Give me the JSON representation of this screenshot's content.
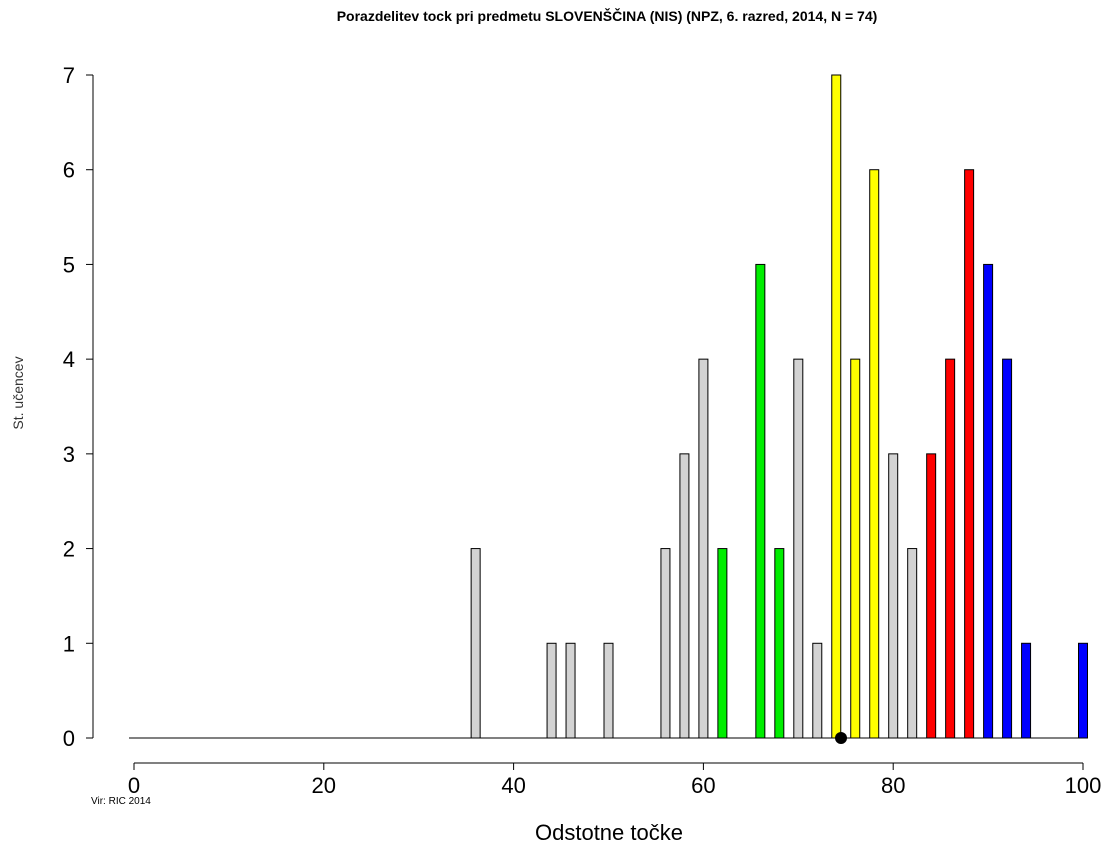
{
  "chart_data": {
    "type": "bar",
    "title": "Porazdelitev tock pri predmetu SLOVENŠČINA (NIS) (NPZ, 6. razred, 2014, N = 74)",
    "xlabel": "Odstotne točke",
    "ylabel": "St. učencev",
    "source": "Vir: RIC 2014",
    "xlim": [
      0,
      100
    ],
    "ylim": [
      0,
      7
    ],
    "xticks": [
      0,
      20,
      40,
      60,
      80,
      100
    ],
    "yticks": [
      0,
      1,
      2,
      3,
      4,
      5,
      6,
      7
    ],
    "mean_marker": 74.5,
    "colors": {
      "gray": "#d3d3d3",
      "green": "#00ee00",
      "yellow": "#ffff00",
      "red": "#ff0000",
      "blue": "#0000ff",
      "marker": "#000000"
    },
    "bars": [
      {
        "x": 36,
        "value": 2,
        "color": "gray"
      },
      {
        "x": 44,
        "value": 1,
        "color": "gray"
      },
      {
        "x": 46,
        "value": 1,
        "color": "gray"
      },
      {
        "x": 50,
        "value": 1,
        "color": "gray"
      },
      {
        "x": 56,
        "value": 2,
        "color": "gray"
      },
      {
        "x": 58,
        "value": 3,
        "color": "gray"
      },
      {
        "x": 60,
        "value": 4,
        "color": "gray"
      },
      {
        "x": 62,
        "value": 2,
        "color": "green"
      },
      {
        "x": 66,
        "value": 5,
        "color": "green"
      },
      {
        "x": 68,
        "value": 2,
        "color": "green"
      },
      {
        "x": 70,
        "value": 4,
        "color": "gray"
      },
      {
        "x": 72,
        "value": 1,
        "color": "gray"
      },
      {
        "x": 74,
        "value": 7,
        "color": "yellow"
      },
      {
        "x": 76,
        "value": 4,
        "color": "yellow"
      },
      {
        "x": 78,
        "value": 6,
        "color": "yellow"
      },
      {
        "x": 80,
        "value": 3,
        "color": "gray"
      },
      {
        "x": 82,
        "value": 2,
        "color": "gray"
      },
      {
        "x": 84,
        "value": 3,
        "color": "red"
      },
      {
        "x": 86,
        "value": 4,
        "color": "red"
      },
      {
        "x": 88,
        "value": 6,
        "color": "red"
      },
      {
        "x": 90,
        "value": 5,
        "color": "blue"
      },
      {
        "x": 92,
        "value": 4,
        "color": "blue"
      },
      {
        "x": 94,
        "value": 1,
        "color": "blue"
      },
      {
        "x": 100,
        "value": 1,
        "color": "blue"
      }
    ]
  }
}
